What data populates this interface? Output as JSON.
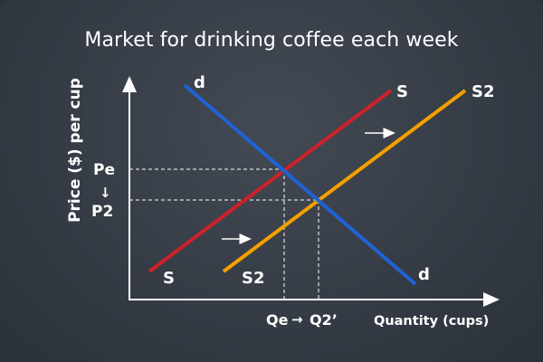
{
  "title": "Market for drinking coffee each week",
  "axes": {
    "y_label": "Price ($) per cup",
    "x_label": "Quantity (cups)"
  },
  "price_ticks": {
    "pe": "Pe",
    "arrow": "↓",
    "p2": "P2"
  },
  "quantity_ticks": {
    "qe": "Qe",
    "arrow": "→",
    "q2": "Q2’"
  },
  "curves": {
    "demand": {
      "start_label": "d",
      "end_label": "d",
      "color": "#1e63d6"
    },
    "supply": {
      "start_label": "S",
      "end_label": "S",
      "color": "#cf2128"
    },
    "supply2": {
      "start_label": "S2",
      "end_label": "S2",
      "color": "#f5a000"
    }
  },
  "shift_arrows": {
    "symbol": "→"
  },
  "colors": {
    "background": "#3b414a",
    "axis": "#ffffff",
    "guide": "#ffffff"
  }
}
